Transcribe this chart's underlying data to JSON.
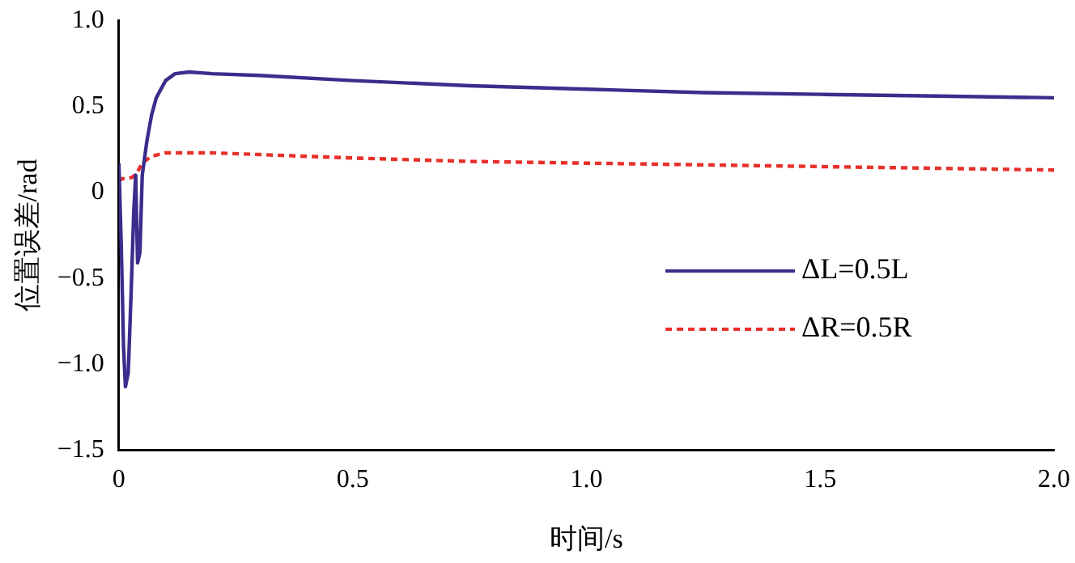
{
  "chart_data": {
    "type": "line",
    "xlabel": "时间/s",
    "ylabel": "位置误差/rad",
    "xlim": [
      0,
      2.0
    ],
    "xticks": [
      0,
      {
        "value": 0.5,
        "label": "0.5"
      },
      {
        "value": 1,
        "label": "1.0"
      },
      {
        "value": 1.5,
        "label": "1.5"
      },
      {
        "value": 2,
        "label": "2.0"
      }
    ],
    "ylim": [
      -1.5,
      1.0
    ],
    "yticks": [
      {
        "value": -1.5,
        "label": "−1.5"
      },
      {
        "value": -1,
        "label": "−1.0"
      },
      {
        "value": -0.5,
        "label": "−0.5"
      },
      0,
      {
        "value": 0.5,
        "label": "0.5"
      },
      {
        "value": 1,
        "label": "1.0"
      }
    ],
    "grid": false,
    "legend": "right",
    "marker": "none",
    "series": [
      {
        "name": "ΔL=0.5L",
        "color": "#3b2d8c",
        "line_style": "solid",
        "x": [
          0,
          0.005,
          0.01,
          0.014,
          0.02,
          0.026,
          0.032,
          0.036,
          0.04,
          0.045,
          0.05,
          0.06,
          0.07,
          0.08,
          0.1,
          0.12,
          0.15,
          0.2,
          0.3,
          0.5,
          0.75,
          1.0,
          1.25,
          1.5,
          1.75,
          2.0
        ],
        "values": [
          0.17,
          -0.3,
          -0.9,
          -1.13,
          -1.05,
          -0.6,
          -0.1,
          0.1,
          -0.41,
          -0.35,
          0.1,
          0.3,
          0.45,
          0.55,
          0.65,
          0.69,
          0.7,
          0.69,
          0.68,
          0.65,
          0.62,
          0.6,
          0.58,
          0.57,
          0.56,
          0.55
        ]
      },
      {
        "name": "ΔR=0.5R",
        "color": "#e8302a",
        "line_style": "dashed",
        "x": [
          0,
          0.004,
          0.01,
          0.02,
          0.03,
          0.04,
          0.05,
          0.07,
          0.1,
          0.15,
          0.2,
          0.3,
          0.5,
          0.75,
          1.0,
          1.25,
          1.5,
          1.75,
          2.0
        ],
        "values": [
          0.0,
          0.08,
          0.08,
          0.08,
          0.09,
          0.12,
          0.17,
          0.21,
          0.23,
          0.23,
          0.23,
          0.22,
          0.2,
          0.18,
          0.17,
          0.16,
          0.15,
          0.14,
          0.13
        ]
      }
    ]
  }
}
